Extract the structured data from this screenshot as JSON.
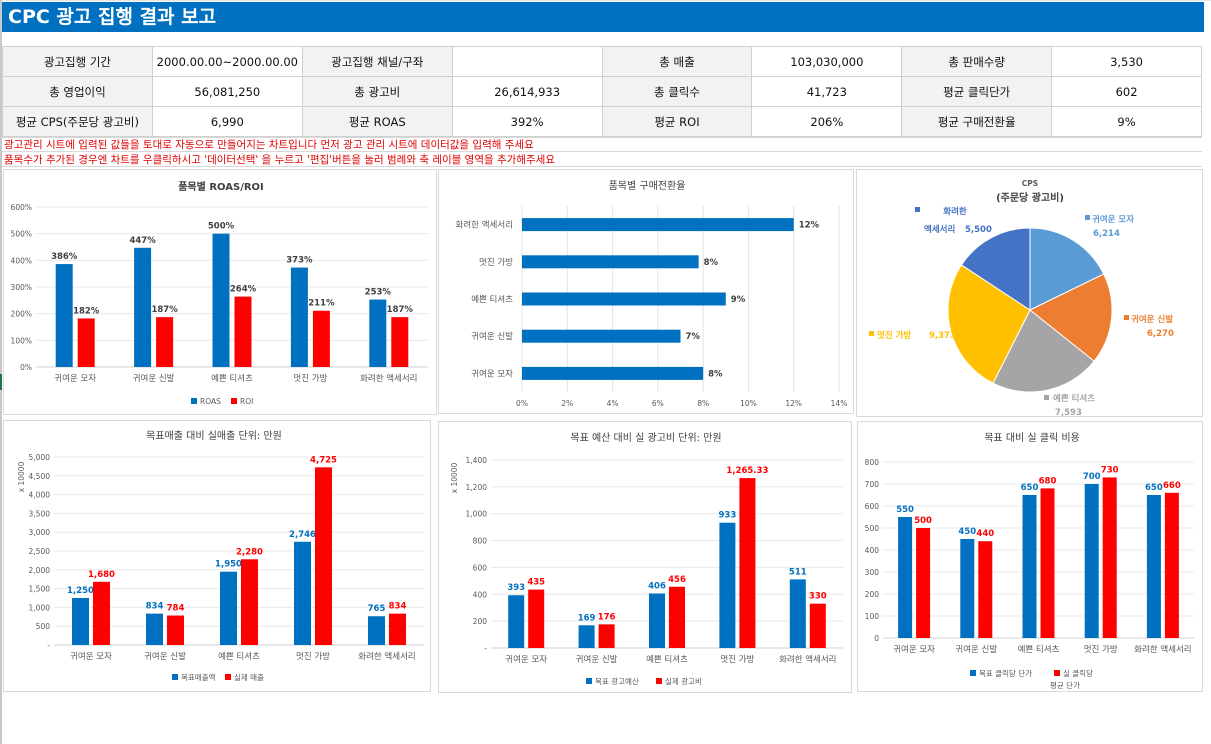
{
  "header": {
    "title": "CPC 광고 집행 결과 보고"
  },
  "kpi_rows": [
    [
      {
        "label": "광고집행 기간",
        "value": "2000.00.00~2000.00.00"
      },
      {
        "label": "광고집행 채널/구좌",
        "value": ""
      },
      {
        "label": "총 매출",
        "value": "103,030,000"
      },
      {
        "label": "총 판매수량",
        "value": "3,530"
      }
    ],
    [
      {
        "label": "총 영업이익",
        "value": "56,081,250"
      },
      {
        "label": "총 광고비",
        "value": "26,614,933"
      },
      {
        "label": "총 클릭수",
        "value": "41,723"
      },
      {
        "label": "평균 클릭단가",
        "value": "602"
      }
    ],
    [
      {
        "label": "평균 CPS(주문당 광고비)",
        "value": "6,990"
      },
      {
        "label": "평균 ROAS",
        "value": "392%"
      },
      {
        "label": "평균 ROI",
        "value": "206%"
      },
      {
        "label": "평균 구매전환율",
        "value": "9%"
      }
    ]
  ],
  "notes": [
    "광고관리 시트에 입력된 값들을 토대로 자동으로 만들어지는 차트입니다 먼저 광고 관리 시트에 데이터값을 입력해 주세요",
    "품목수가 추가된 경우엔 차트를 우클릭하시고 '데이터선택' 을 누르고 '편집'버튼을 눌러 범례와 축 레이블 영역을 추가해주세요"
  ],
  "colors": {
    "blue": "#0070C0",
    "red": "#FF0000",
    "pie": [
      "#5B9BD5",
      "#ED7D31",
      "#A5A5A5",
      "#FFC000",
      "#4472C4"
    ]
  },
  "chart_data": [
    {
      "id": "roas-roi",
      "type": "bar",
      "title": "품목별 ROAS/ROI",
      "categories": [
        "귀여운 모자",
        "귀여운 신발",
        "예쁜 티셔츠",
        "멋진 가방",
        "화려한 액세서리"
      ],
      "series": [
        {
          "name": "ROAS",
          "values": [
            386,
            447,
            500,
            373,
            253
          ],
          "labels": [
            "386%",
            "447%",
            "500%",
            "373%",
            "253%"
          ]
        },
        {
          "name": "ROI",
          "values": [
            182,
            187,
            264,
            211,
            187
          ],
          "labels": [
            "182%",
            "187%",
            "264%",
            "211%",
            "187%"
          ]
        }
      ],
      "ylim": [
        0,
        600
      ],
      "yticks": [
        "0%",
        "100%",
        "200%",
        "300%",
        "400%",
        "500%",
        "600%"
      ],
      "xlabel": "",
      "ylabel": "",
      "grid": true,
      "legend": "bottom"
    },
    {
      "id": "conversion",
      "type": "bar",
      "orientation": "horizontal",
      "title": "품목별 구매전환율",
      "categories": [
        "화려한 액세서리",
        "멋진 가방",
        "예쁜 티셔츠",
        "귀여운 신발",
        "귀여운 모자"
      ],
      "values": [
        12,
        7.8,
        9,
        7,
        8
      ],
      "labels": [
        "12%",
        "8%",
        "9%",
        "7%",
        "8%"
      ],
      "xlim": [
        0,
        14
      ],
      "xticks": [
        "0%",
        "2%",
        "4%",
        "6%",
        "8%",
        "10%",
        "12%",
        "14%"
      ],
      "grid": true
    },
    {
      "id": "cps",
      "type": "pie",
      "title": "CPS",
      "subtitle": "(주문당 광고비)",
      "slices": [
        {
          "name": "귀여운 모자",
          "value": 6214,
          "label": "6,214"
        },
        {
          "name": "귀여운 신발",
          "value": 6270,
          "label": "6,270"
        },
        {
          "name": "예쁜 티셔츠",
          "value": 7593,
          "label": "7,593"
        },
        {
          "name": "멋진 가방",
          "value": 9373,
          "label": "9,373"
        },
        {
          "name": "화려한 액세서리",
          "value": 5500,
          "label": "5,500"
        }
      ]
    },
    {
      "id": "sales",
      "type": "bar",
      "title": "목표매출 대비 실매출  단위: 만원",
      "ylabel": "x 10000",
      "categories": [
        "귀여운 모자",
        "귀여운 신발",
        "예쁜 티셔츠",
        "멋진 가방",
        "화려한 액세서리"
      ],
      "series": [
        {
          "name": "목표매출액",
          "values": [
            1250,
            834,
            1950,
            2746,
            765
          ],
          "labels": [
            "1,250",
            "834",
            "1,950",
            "2,746",
            "765"
          ]
        },
        {
          "name": "실제 매출",
          "values": [
            1680,
            784,
            2280,
            4725,
            834
          ],
          "labels": [
            "1,680",
            "784",
            "2,280",
            "4,725",
            "834"
          ]
        }
      ],
      "ylim": [
        0,
        5000
      ],
      "yticks": [
        "-",
        "500",
        "1,000",
        "1,500",
        "2,000",
        "2,500",
        "3,000",
        "3,500",
        "4,000",
        "4,500",
        "5,000"
      ],
      "grid": true,
      "legend": "bottom"
    },
    {
      "id": "budget",
      "type": "bar",
      "title": "목표 예산 대비 실 광고비 단위: 만원",
      "ylabel": "x 10000",
      "categories": [
        "귀여운 모자",
        "귀여운 신발",
        "예쁜 티셔츠",
        "멋진 가방",
        "화려한 액세서리"
      ],
      "series": [
        {
          "name": "목표 광고예산",
          "values": [
            393,
            169,
            406,
            933,
            511
          ],
          "labels": [
            "393",
            "169",
            "406",
            "933",
            "511"
          ]
        },
        {
          "name": "실제 광고비",
          "values": [
            435,
            176,
            456,
            1265.33,
            330
          ],
          "labels": [
            "435",
            "176",
            "456",
            "1,265.33",
            "330"
          ]
        }
      ],
      "ylim": [
        0,
        1400
      ],
      "yticks": [
        "-",
        "200",
        "400",
        "600",
        "800",
        "1,000",
        "1,200",
        "1,400"
      ],
      "grid": true,
      "legend": "bottom"
    },
    {
      "id": "click-cost",
      "type": "bar",
      "title": "목표 대비 실 클릭 비용",
      "categories": [
        "귀여운 모자",
        "귀여운 신발",
        "예쁜 티셔츠",
        "멋진 가방",
        "화려한 액세서리"
      ],
      "series": [
        {
          "name": "목표 클릭당 단가",
          "values": [
            550,
            450,
            650,
            700,
            650
          ],
          "labels": [
            "550",
            "450",
            "650",
            "700",
            "650"
          ]
        },
        {
          "name": "실 클릭당 평균 단가",
          "values": [
            500,
            440,
            680,
            730,
            660
          ],
          "labels": [
            "500",
            "440",
            "680",
            "730",
            "660"
          ]
        }
      ],
      "legend_lines": [
        "실 클릭당",
        "평균 단가"
      ],
      "ylim": [
        0,
        800
      ],
      "yticks": [
        "0",
        "100",
        "200",
        "300",
        "400",
        "500",
        "600",
        "700",
        "800"
      ],
      "grid": true,
      "legend": "bottom"
    }
  ]
}
